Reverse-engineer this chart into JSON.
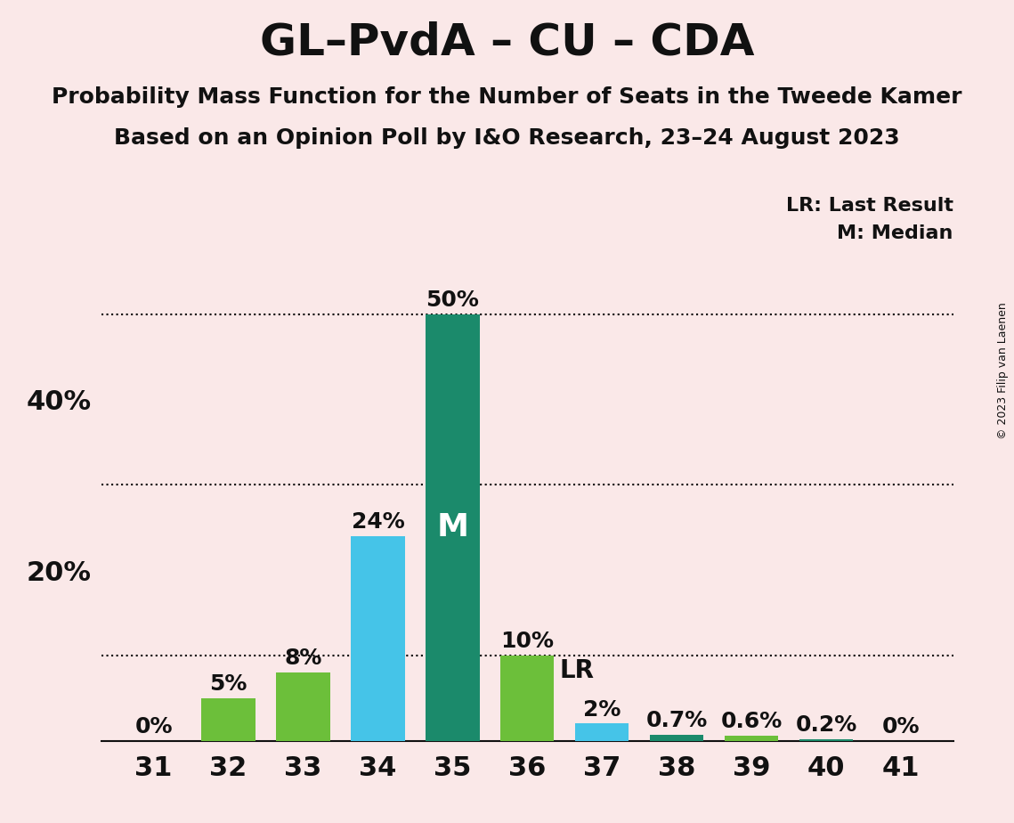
{
  "title": "GL–PvdA – CU – CDA",
  "subtitle1": "Probability Mass Function for the Number of Seats in the Tweede Kamer",
  "subtitle2": "Based on an Opinion Poll by I&O Research, 23–24 August 2023",
  "copyright": "© 2023 Filip van Laenen",
  "seats": [
    31,
    32,
    33,
    34,
    35,
    36,
    37,
    38,
    39,
    40,
    41
  ],
  "values": [
    0.0,
    5.0,
    8.0,
    24.0,
    50.0,
    10.0,
    2.0,
    0.7,
    0.6,
    0.2,
    0.0
  ],
  "labels": [
    "0%",
    "5%",
    "8%",
    "24%",
    "50%",
    "10%",
    "2%",
    "0.7%",
    "0.6%",
    "0.2%",
    "0%"
  ],
  "bar_colors": [
    "#1B8A6B",
    "#6CBF3A",
    "#6CBF3A",
    "#45C4E8",
    "#1B8A6B",
    "#6CBF3A",
    "#45C4E8",
    "#1B8A6B",
    "#6CBF3A",
    "#1B8A6B",
    "#6CBF3A"
  ],
  "median_seat": 35,
  "lr_seat": 36,
  "lr_value": 10.0,
  "background_color": "#FAE8E8",
  "ylim": [
    0,
    55
  ],
  "dotted_lines": [
    10.0,
    30.0,
    50.0
  ],
  "title_fontsize": 36,
  "subtitle_fontsize": 18,
  "label_fontsize": 18,
  "tick_fontsize": 22,
  "legend_fontsize": 16,
  "copyright_fontsize": 9,
  "m_fontsize": 26,
  "lr_fontsize": 20
}
